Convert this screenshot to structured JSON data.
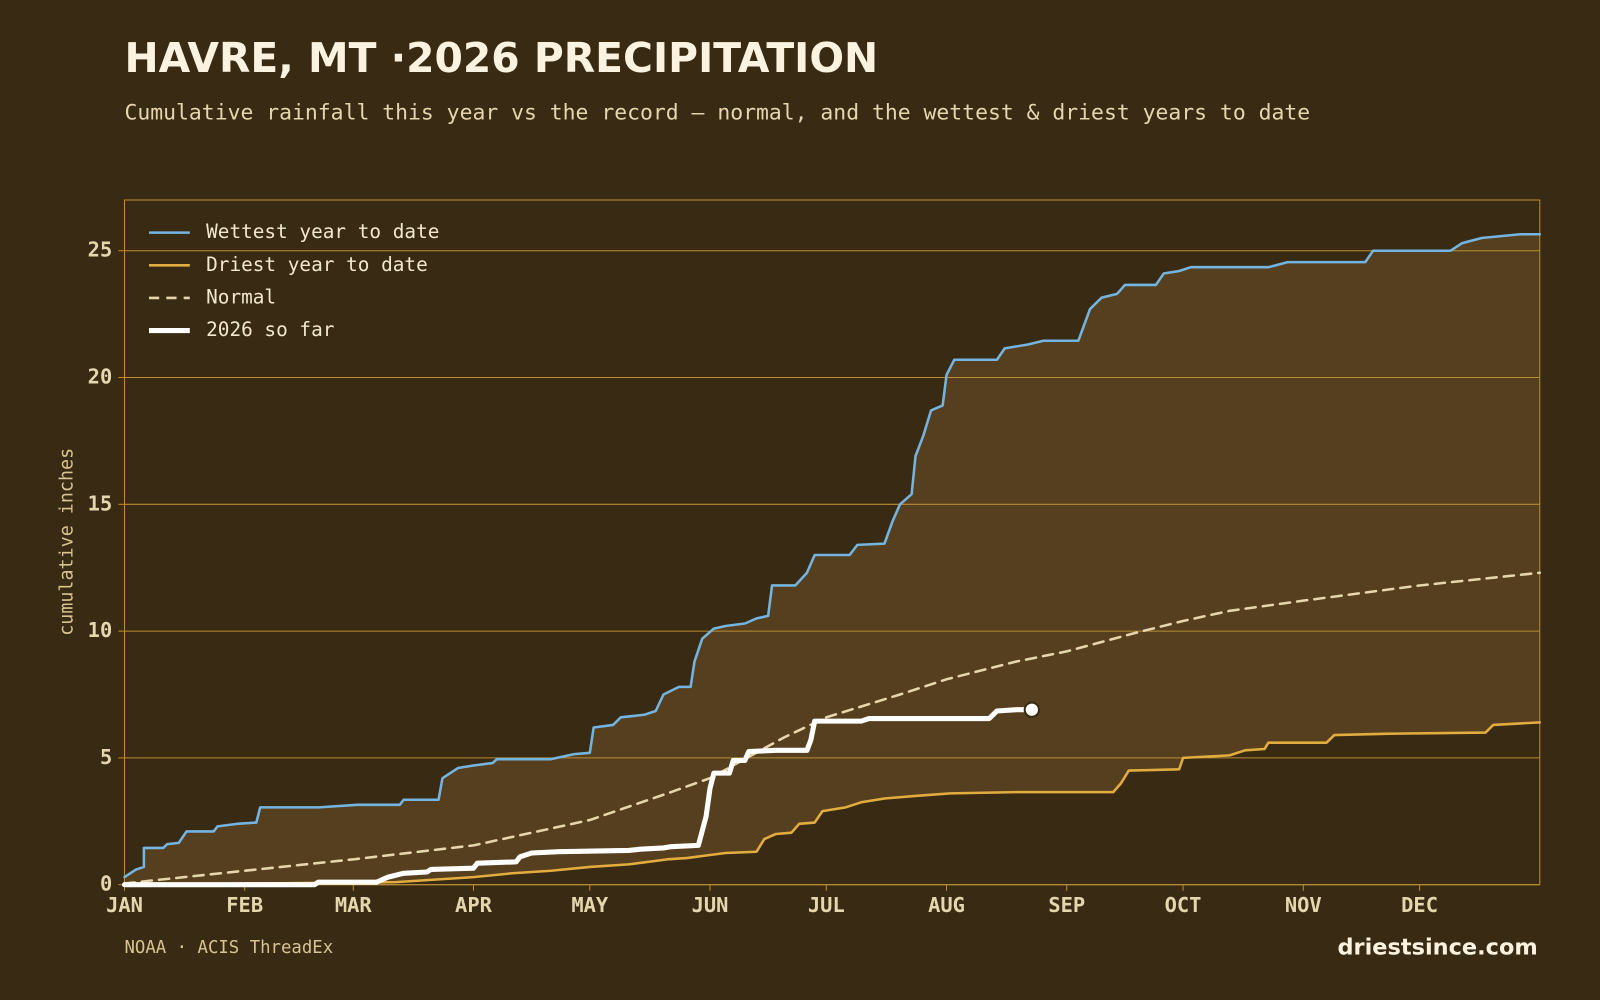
{
  "chart_data": {
    "type": "line",
    "title": "HAVRE, MT ·2026 PRECIPITATION",
    "subtitle": "Cumulative rainfall this year vs the record — normal, and the wettest & driest years to date",
    "ylabel": "cumulative inches",
    "source": "NOAA · ACIS ThreadEx",
    "site": "driestsince.com",
    "xlim": [
      0,
      365
    ],
    "xticks": [
      {
        "value": 0,
        "label": "JAN"
      },
      {
        "value": 31,
        "label": "FEB"
      },
      {
        "value": 59,
        "label": "MAR"
      },
      {
        "value": 90,
        "label": "APR"
      },
      {
        "value": 120,
        "label": "MAY"
      },
      {
        "value": 151,
        "label": "JUN"
      },
      {
        "value": 181,
        "label": "JUL"
      },
      {
        "value": 212,
        "label": "AUG"
      },
      {
        "value": 243,
        "label": "SEP"
      },
      {
        "value": 273,
        "label": "OCT"
      },
      {
        "value": 304,
        "label": "NOV"
      },
      {
        "value": 334,
        "label": "DEC"
      }
    ],
    "ylim": [
      0,
      27
    ],
    "yticks": [
      0,
      5,
      10,
      15,
      20,
      25
    ],
    "grid": true,
    "legend": "top-left",
    "series": [
      {
        "name": "Wettest year to date",
        "color": "#74b4e0",
        "style": "solid",
        "x": [
          0,
          3,
          5,
          5,
          10,
          11,
          14,
          16,
          23,
          24,
          29,
          34,
          35,
          50,
          60,
          71,
          72,
          81,
          82,
          86,
          90,
          95,
          96,
          110,
          116,
          120,
          121,
          126,
          128,
          134,
          137,
          139,
          143,
          146,
          147,
          149,
          152,
          155,
          160,
          163,
          166,
          167,
          173,
          176,
          178,
          187,
          189,
          196,
          198,
          200,
          203,
          204,
          206,
          208,
          211,
          212,
          214,
          225,
          227,
          233,
          237,
          246,
          249,
          252,
          256,
          258,
          266,
          268,
          272,
          275,
          295,
          300,
          320,
          322,
          342,
          345,
          350,
          360,
          365
        ],
        "values": [
          0.3,
          0.6,
          0.7,
          1.45,
          1.45,
          1.6,
          1.65,
          2.1,
          2.1,
          2.3,
          2.4,
          2.45,
          3.05,
          3.05,
          3.15,
          3.15,
          3.35,
          3.35,
          4.2,
          4.6,
          4.7,
          4.8,
          4.95,
          4.95,
          5.15,
          5.2,
          6.2,
          6.3,
          6.6,
          6.7,
          6.85,
          7.5,
          7.8,
          7.8,
          8.8,
          9.7,
          10.1,
          10.2,
          10.3,
          10.5,
          10.6,
          11.8,
          11.8,
          12.3,
          13.0,
          13.0,
          13.4,
          13.45,
          14.3,
          15.0,
          15.4,
          16.9,
          17.7,
          18.7,
          18.9,
          20.1,
          20.7,
          20.7,
          21.15,
          21.3,
          21.45,
          21.45,
          22.7,
          23.15,
          23.3,
          23.65,
          23.65,
          24.1,
          24.2,
          24.35,
          24.35,
          24.55,
          24.55,
          25.0,
          25.0,
          25.3,
          25.5,
          25.65,
          25.65
        ]
      },
      {
        "name": "Driest year to date",
        "color": "#e2ad3e",
        "style": "solid",
        "x": [
          0,
          70,
          90,
          100,
          110,
          120,
          130,
          140,
          145,
          150,
          155,
          163,
          165,
          168,
          172,
          174,
          178,
          180,
          186,
          190,
          196,
          204,
          213,
          230,
          255,
          257,
          259,
          272,
          273,
          285,
          289,
          294,
          295,
          310,
          312,
          325,
          351,
          353,
          365
        ],
        "values": [
          0,
          0.1,
          0.3,
          0.45,
          0.55,
          0.7,
          0.8,
          1.0,
          1.05,
          1.15,
          1.25,
          1.3,
          1.8,
          2.0,
          2.05,
          2.4,
          2.45,
          2.9,
          3.05,
          3.25,
          3.4,
          3.5,
          3.6,
          3.65,
          3.65,
          4.0,
          4.5,
          4.55,
          5.0,
          5.1,
          5.3,
          5.35,
          5.6,
          5.6,
          5.9,
          5.95,
          6.0,
          6.3,
          6.4
        ]
      },
      {
        "name": "Normal",
        "color": "#e6d6ae",
        "style": "dashed",
        "x": [
          0,
          31,
          59,
          90,
          120,
          140,
          151,
          170,
          181,
          200,
          212,
          230,
          243,
          260,
          273,
          285,
          304,
          334,
          365
        ],
        "values": [
          0.05,
          0.55,
          1.0,
          1.55,
          2.55,
          3.6,
          4.2,
          5.8,
          6.6,
          7.5,
          8.1,
          8.8,
          9.2,
          9.9,
          10.4,
          10.8,
          11.2,
          11.8,
          12.3
        ]
      },
      {
        "name": "2026 so far",
        "color": "#ffffff",
        "style": "thick",
        "x": [
          0,
          49,
          50,
          65,
          68,
          72,
          78,
          79,
          90,
          91,
          101,
          102,
          105,
          112,
          130,
          133,
          139,
          141,
          148,
          150,
          151,
          152,
          156,
          157,
          160,
          161,
          168,
          176,
          177,
          178,
          190,
          192,
          223,
          225,
          230,
          234
        ],
        "values": [
          0,
          0,
          0.1,
          0.1,
          0.3,
          0.45,
          0.5,
          0.6,
          0.65,
          0.85,
          0.9,
          1.1,
          1.25,
          1.3,
          1.35,
          1.4,
          1.45,
          1.5,
          1.55,
          2.7,
          3.8,
          4.4,
          4.4,
          4.9,
          4.9,
          5.25,
          5.3,
          5.3,
          5.7,
          6.45,
          6.45,
          6.55,
          6.55,
          6.85,
          6.9,
          6.9
        ]
      }
    ]
  }
}
